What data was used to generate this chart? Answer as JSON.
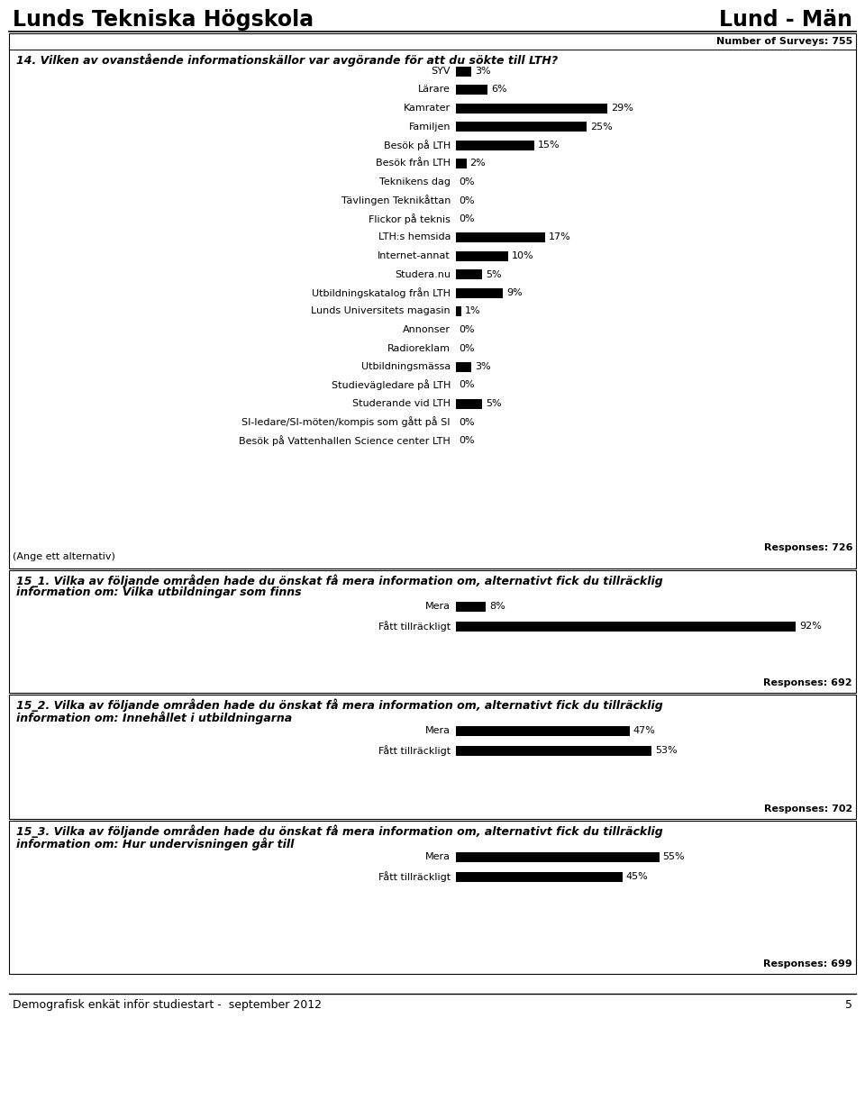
{
  "header_left": "Lunds Tekniska Högskola",
  "header_right": "Lund - Män",
  "footer_text": "Demografisk enkät inför studiestart -  september 2012",
  "footer_page": "5",
  "q14_title": "14. Vilken av ovanstående informationskällor var avgörande för att du sökte till LTH?",
  "q14_responses": "Responses: 726",
  "q14_note": "(Ange ett alternativ)",
  "q14_surveys": "Number of Surveys: 755",
  "q14_categories": [
    "SYV",
    "Lärare",
    "Kamrater",
    "Familjen",
    "Besök på LTH",
    "Besök från LTH",
    "Teknikens dag",
    "Tävlingen Teknikåttan",
    "Flickor på teknis",
    "LTH:s hemsida",
    "Internet-annat",
    "Studera.nu",
    "Utbildningskatalog från LTH",
    "Lunds Universitets magasin",
    "Annonser",
    "Radioreklam",
    "Utbildningsmässa",
    "Studievägledare på LTH",
    "Studerande vid LTH",
    "SI-ledare/SI-möten/kompis som gått på SI",
    "Besök på Vattenhallen Science center LTH"
  ],
  "q14_values": [
    3,
    6,
    29,
    25,
    15,
    2,
    0,
    0,
    0,
    17,
    10,
    5,
    9,
    1,
    0,
    0,
    3,
    0,
    5,
    0,
    0
  ],
  "q15_1_title_line1": "15_1. Vilka av följande områden hade du önskat få mera information om, alternativt fick du tillräcklig",
  "q15_1_title_line2": "information om: Vilka utbildningar som finns",
  "q15_1_responses": "Responses: 692",
  "q15_1_categories": [
    "Mera",
    "Fått tillräckligt"
  ],
  "q15_1_values": [
    8,
    92
  ],
  "q15_2_title_line1": "15_2. Vilka av följande områden hade du önskat få mera information om, alternativt fick du tillräcklig",
  "q15_2_title_line2": "information om: Innehållet i utbildningarna",
  "q15_2_responses": "Responses: 702",
  "q15_2_categories": [
    "Mera",
    "Fått tillräckligt"
  ],
  "q15_2_values": [
    47,
    53
  ],
  "q15_3_title_line1": "15_3. Vilka av följande områden hade du önskat få mera information om, alternativt fick du tillräcklig",
  "q15_3_title_line2": "information om: Hur undervisningen går till",
  "q15_3_responses": "Responses: 699",
  "q15_3_categories": [
    "Mera",
    "Fått tillräckligt"
  ],
  "q15_3_values": [
    55,
    45
  ],
  "bar_color": "#000000",
  "background_color": "#ffffff",
  "box_border_color": "#000000"
}
